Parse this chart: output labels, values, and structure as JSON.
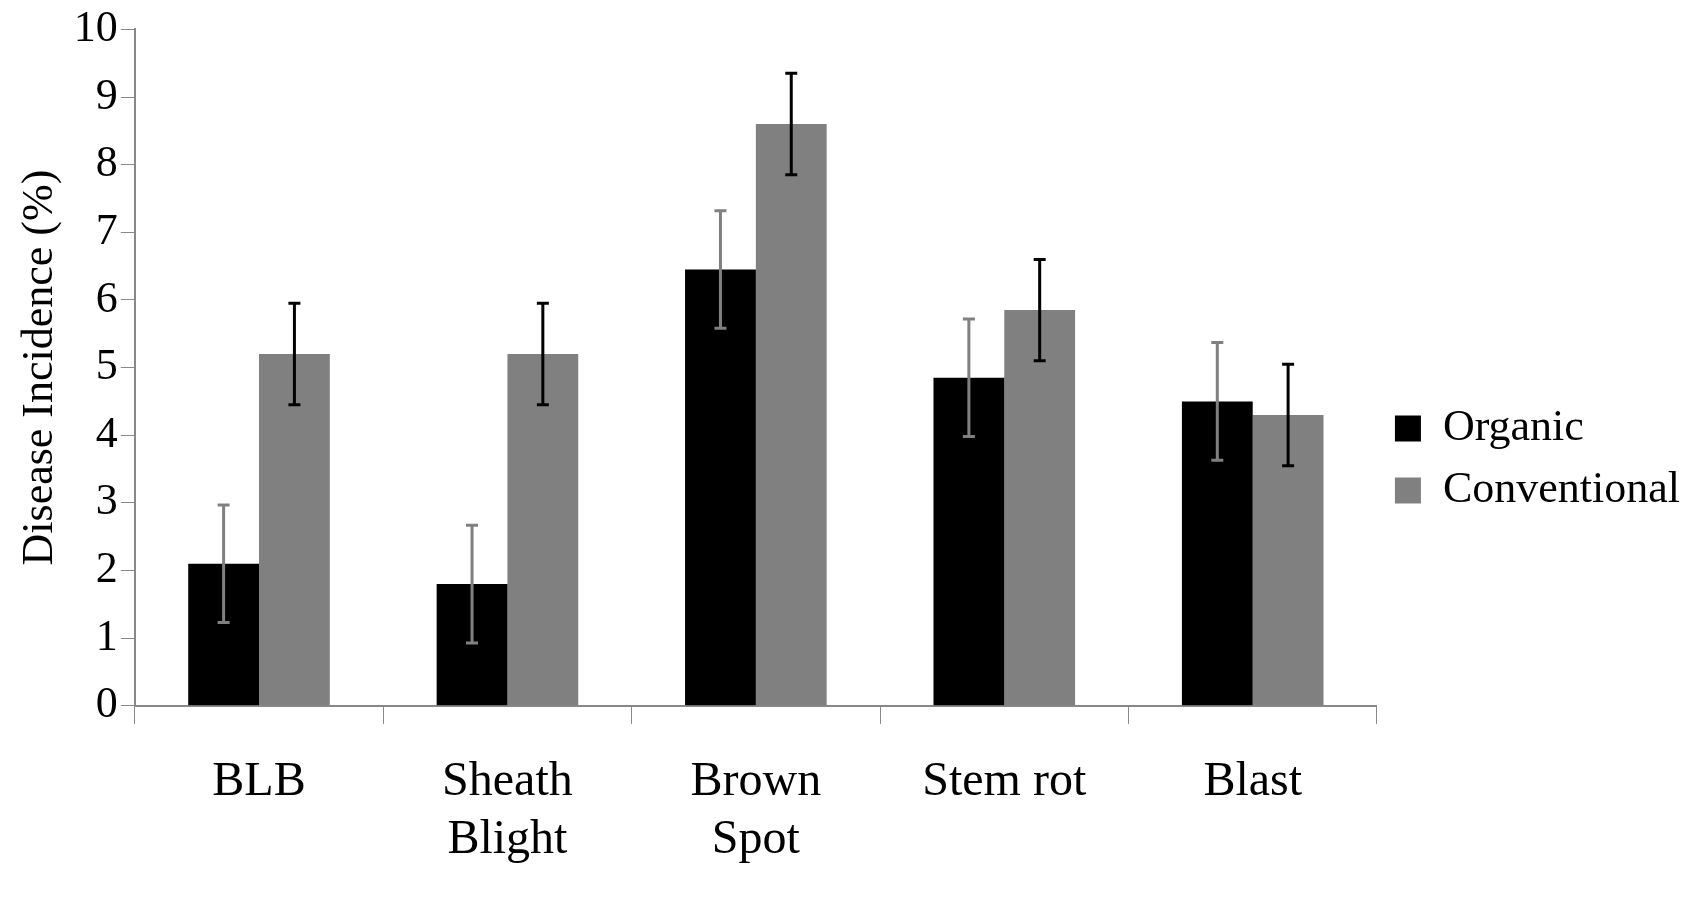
{
  "chart_data": {
    "type": "bar",
    "ylabel": "Disease Incidence (%)",
    "categories": [
      "BLB",
      "Sheath Blight",
      "Brown Spot",
      "Stem rot",
      "Blast"
    ],
    "series": [
      {
        "name": "Organic",
        "color": "#000000",
        "values": [
          2.1,
          1.8,
          6.45,
          4.85,
          4.5
        ],
        "errors": [
          0.87,
          0.87,
          0.87,
          0.87,
          0.87
        ]
      },
      {
        "name": "Conventional",
        "color": "#808080",
        "values": [
          5.2,
          5.2,
          8.6,
          5.85,
          4.3
        ],
        "errors": [
          0.75,
          0.75,
          0.75,
          0.75,
          0.75
        ]
      }
    ],
    "ylim": [
      0,
      10
    ],
    "yticks": [
      0,
      1,
      2,
      3,
      4,
      5,
      6,
      7,
      8,
      9,
      10
    ],
    "legend": "right"
  }
}
